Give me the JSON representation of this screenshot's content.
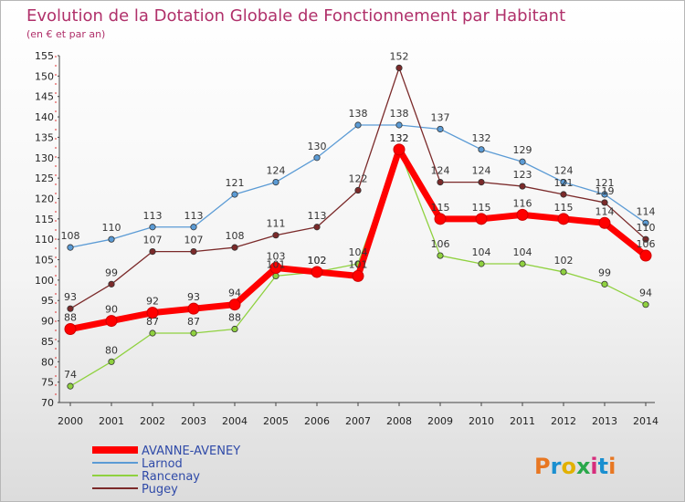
{
  "chart_data": {
    "type": "line",
    "title": "Evolution de la Dotation Globale de Fonctionnement par Habitant",
    "subtitle": "(en € et par an)",
    "categories": [
      "2000",
      "2001",
      "2002",
      "2003",
      "2004",
      "2005",
      "2006",
      "2007",
      "2008",
      "2009",
      "2010",
      "2011",
      "2012",
      "2013",
      "2014"
    ],
    "yticks": [
      70,
      75,
      80,
      85,
      90,
      95,
      100,
      105,
      110,
      115,
      120,
      125,
      130,
      135,
      140,
      145,
      150,
      155
    ],
    "ylim": [
      70,
      155
    ],
    "grid": false,
    "legend_position": "bottom-left",
    "series": [
      {
        "name": "Larnod",
        "color": "#5b9bd5",
        "values": [
          108,
          110,
          113,
          113,
          121,
          124,
          130,
          138,
          138,
          137,
          132,
          129,
          124,
          121,
          114
        ]
      },
      {
        "name": "Rancenay",
        "color": "#8fd13f",
        "values": [
          74,
          80,
          87,
          87,
          88,
          101,
          102,
          104,
          132,
          106,
          104,
          104,
          102,
          99,
          94
        ]
      },
      {
        "name": "Pugey",
        "color": "#7b2a2a",
        "values": [
          93,
          99,
          107,
          107,
          108,
          111,
          113,
          122,
          152,
          124,
          124,
          123,
          121,
          119,
          110
        ]
      },
      {
        "name": "AVANNE-AVENEY",
        "color": "#ff0000",
        "values": [
          88,
          90,
          92,
          93,
          94,
          103,
          102,
          101,
          132,
          115,
          115,
          116,
          115,
          114,
          106
        ]
      }
    ],
    "legend": [
      "AVANNE-AVENEY",
      "Larnod",
      "Rancenay",
      "Pugey"
    ]
  },
  "brand": {
    "text": "Proxiti"
  }
}
